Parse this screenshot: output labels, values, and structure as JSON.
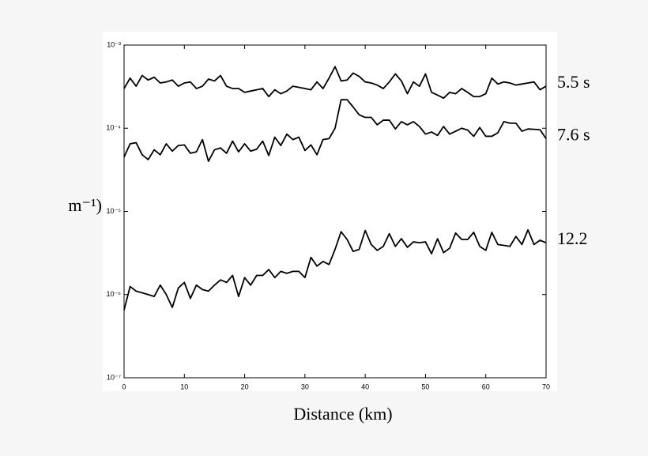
{
  "chart_data": {
    "type": "line",
    "xlabel": "Distance (km)",
    "ylabel": "m⁻¹)",
    "yscale": "log",
    "xlim": [
      0,
      70
    ],
    "ylim": [
      1e-07,
      0.001
    ],
    "xticks": [
      0,
      10,
      20,
      30,
      40,
      50,
      60,
      70
    ],
    "yticks": [
      {
        "value": 1e-07,
        "label": "10⁻⁷"
      },
      {
        "value": 1e-06,
        "label": "10⁻⁶"
      },
      {
        "value": 1e-05,
        "label": "10⁻⁵"
      },
      {
        "value": 0.0001,
        "label": "10⁻⁴"
      },
      {
        "value": 0.001,
        "label": "10⁻³"
      }
    ],
    "x": [
      0,
      1,
      2,
      3,
      4,
      5,
      6,
      7,
      8,
      9,
      10,
      11,
      12,
      13,
      14,
      15,
      16,
      17,
      18,
      19,
      20,
      21,
      22,
      23,
      24,
      25,
      26,
      27,
      28,
      29,
      30,
      31,
      32,
      33,
      34,
      35,
      36,
      37,
      38,
      39,
      40,
      41,
      42,
      43,
      44,
      45,
      46,
      47,
      48,
      49,
      50,
      51,
      52,
      53,
      54,
      55,
      56,
      57,
      58,
      59,
      60,
      61,
      62,
      63,
      64,
      65,
      66,
      67,
      68,
      69,
      70
    ],
    "series": [
      {
        "name": "5.5 s",
        "color": "#000000",
        "values": [
          0.0003,
          0.0004,
          0.00032,
          0.00043,
          0.00038,
          0.00041,
          0.00035,
          0.00036,
          0.00038,
          0.00032,
          0.00035,
          0.00036,
          0.0003,
          0.00032,
          0.00039,
          0.00037,
          0.00043,
          0.00032,
          0.0003,
          0.0003,
          0.00027,
          0.00028,
          0.00029,
          0.0003,
          0.00024,
          0.00029,
          0.00026,
          0.00028,
          0.00032,
          0.00031,
          0.0003,
          0.00029,
          0.00036,
          0.0003,
          0.0004,
          0.00055,
          0.00037,
          0.00038,
          0.00046,
          0.00042,
          0.00036,
          0.00035,
          0.00033,
          0.0003,
          0.00036,
          0.00045,
          0.00037,
          0.00026,
          0.00036,
          0.00032,
          0.00045,
          0.00027,
          0.00025,
          0.00023,
          0.00027,
          0.00026,
          0.0003,
          0.00027,
          0.00024,
          0.00024,
          0.00026,
          0.0004,
          0.00034,
          0.00036,
          0.00035,
          0.00033,
          0.00034,
          0.00035,
          0.00036,
          0.00029,
          0.00032
        ]
      },
      {
        "name": "7.6 s",
        "color": "#000000",
        "values": [
          4.5e-05,
          6.5e-05,
          6.7e-05,
          4.8e-05,
          4.2e-05,
          5.5e-05,
          4.8e-05,
          6.5e-05,
          5.3e-05,
          6.2e-05,
          6.3e-05,
          5e-05,
          5.2e-05,
          7.3e-05,
          4e-05,
          5.5e-05,
          5.8e-05,
          5e-05,
          7e-05,
          5.2e-05,
          6.5e-05,
          5.3e-05,
          5.6e-05,
          7e-05,
          4.7e-05,
          7.8e-05,
          6.2e-05,
          8.5e-05,
          7.3e-05,
          7.8e-05,
          5.4e-05,
          6.3e-05,
          4.8e-05,
          7.3e-05,
          7.5e-05,
          0.0001,
          0.00022,
          0.00022,
          0.00018,
          0.000145,
          0.000135,
          0.000135,
          0.00011,
          0.000125,
          0.000125,
          9.8e-05,
          0.00012,
          0.00011,
          0.00012,
          0.000105,
          8.5e-05,
          9e-05,
          8.2e-05,
          0.000105,
          8.5e-05,
          9.2e-05,
          0.0001,
          9.5e-05,
          8e-05,
          0.000102,
          8e-05,
          8e-05,
          8.8e-05,
          0.00012,
          0.000115,
          0.000115,
          9.2e-05,
          9.8e-05,
          9.7e-05,
          9.6e-05,
          7.5e-05
        ]
      },
      {
        "name": "12.2",
        "color": "#000000",
        "values": [
          6.5e-07,
          1.25e-06,
          1.1e-06,
          1.05e-06,
          1e-06,
          9.5e-07,
          1.3e-06,
          1e-06,
          7e-07,
          1.2e-06,
          1.4e-06,
          9e-07,
          1.3e-06,
          1.15e-06,
          1.1e-06,
          1.3e-06,
          1.5e-06,
          1.4e-06,
          1.7e-06,
          9.5e-07,
          1.6e-06,
          1.3e-06,
          1.7e-06,
          1.7e-06,
          2e-06,
          1.6e-06,
          1.9e-06,
          1.8e-06,
          1.9e-06,
          1.9e-06,
          1.6e-06,
          2.8e-06,
          2.2e-06,
          2.5e-06,
          2.3e-06,
          3.5e-06,
          5.7e-06,
          4.6e-06,
          3.3e-06,
          3.5e-06,
          5.9e-06,
          4e-06,
          3.4e-06,
          3.8e-06,
          5.4e-06,
          3.8e-06,
          4.7e-06,
          3.7e-06,
          4.3e-06,
          4.2e-06,
          4.3e-06,
          3.1e-06,
          4.7e-06,
          3.2e-06,
          3.6e-06,
          5.5e-06,
          4.6e-06,
          4.6e-06,
          5.6e-06,
          3.8e-06,
          3.4e-06,
          5.6e-06,
          4e-06,
          3.9e-06,
          3.8e-06,
          5e-06,
          4e-06,
          6e-06,
          4e-06,
          4.5e-06,
          4.2e-06
        ]
      }
    ]
  }
}
